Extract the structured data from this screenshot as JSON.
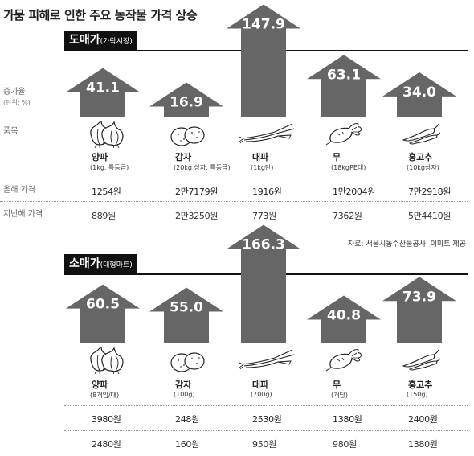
{
  "title": "가뭄 피해로 인한 주요 농작물 가격 상승",
  "row_labels": {
    "increase": "증가율",
    "increase_unit": "(단위: %)",
    "item": "품목",
    "this_year": "올해 가격",
    "last_year": "지난해 가격"
  },
  "source": "자료: 서울시농수산물공사, 이마트 제공",
  "colors": {
    "arrow": "#666666",
    "label_bg": "#111111"
  },
  "chart_data": [
    {
      "type": "bar",
      "title": "도매가",
      "subtitle": "(가락시장)",
      "ylabel": "증가율 (단위: %)",
      "categories": [
        "양파",
        "감자",
        "대파",
        "무",
        "홍고추"
      ],
      "units": [
        "(1kg, 특등급)",
        "(20kg 상자, 특등급)",
        "(1kg단)",
        "(18kgPE대)",
        "(10kg상자)"
      ],
      "icons": [
        "onion-icon",
        "potato-icon",
        "green-onion-icon",
        "radish-icon",
        "red-pepper-icon"
      ],
      "values": [
        41.1,
        16.9,
        147.9,
        63.1,
        34.0
      ],
      "value_labels": [
        "41.1",
        "16.9",
        "147.9",
        "63.1",
        "34.0"
      ],
      "this_year": [
        "1254원",
        "2만7179원",
        "1916원",
        "1만2004원",
        "7만2918원"
      ],
      "last_year": [
        "889원",
        "2만3250원",
        "773원",
        "7362원",
        "5만4410원"
      ]
    },
    {
      "type": "bar",
      "title": "소매가",
      "subtitle": "(대형마트)",
      "categories": [
        "양파",
        "감자",
        "대파",
        "무",
        "홍고추"
      ],
      "units": [
        "(8개입/대)",
        "(100g)",
        "(700g)",
        "(개당)",
        "(150g)"
      ],
      "icons": [
        "onion-icon",
        "potato-icon",
        "green-onion-icon",
        "radish-icon",
        "red-pepper-icon"
      ],
      "values": [
        60.5,
        55.0,
        166.3,
        40.8,
        73.9
      ],
      "value_labels": [
        "60.5",
        "55.0",
        "166.3",
        "40.8",
        "73.9"
      ],
      "this_year": [
        "3980원",
        "248원",
        "2530원",
        "1380원",
        "2400원"
      ],
      "last_year": [
        "2480원",
        "160원",
        "950원",
        "980원",
        "1380원"
      ]
    }
  ]
}
